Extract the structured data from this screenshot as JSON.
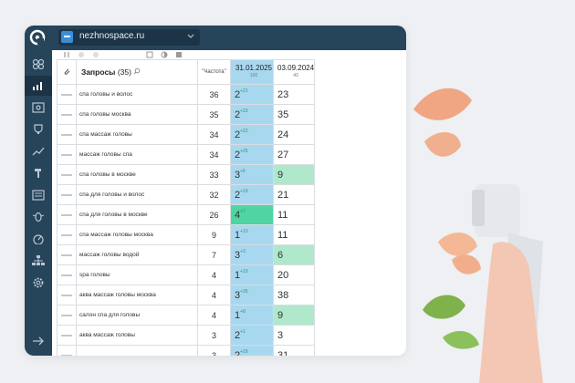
{
  "app": {
    "site": "nezhnospace.ru"
  },
  "table": {
    "header": {
      "queries_label": "Запросы",
      "queries_count": "(35)",
      "frequency_label": "\"Частота\""
    },
    "dates": [
      {
        "date": "31.01.2025",
        "sub": "100"
      },
      {
        "date": "03.09.2024",
        "sub": "43"
      }
    ],
    "rows": [
      {
        "query": "спа головы и волос",
        "freq": "36",
        "pos1": "2",
        "delta": "+21",
        "pos2": "23"
      },
      {
        "query": "спа головы москва",
        "freq": "35",
        "pos1": "2",
        "delta": "+33",
        "pos2": "35"
      },
      {
        "query": "спа массаж головы",
        "freq": "34",
        "pos1": "2",
        "delta": "+22",
        "pos2": "24"
      },
      {
        "query": "массаж головы спа",
        "freq": "34",
        "pos1": "2",
        "delta": "+25",
        "pos2": "27"
      },
      {
        "query": "спа головы в москве",
        "freq": "33",
        "pos1": "3",
        "delta": "+6",
        "pos2": "9"
      },
      {
        "query": "спа для головы и волос",
        "freq": "32",
        "pos1": "2",
        "delta": "+19",
        "pos2": "21"
      },
      {
        "query": "спа для головы в москве",
        "freq": "26",
        "pos1": "4",
        "delta": "+7",
        "pos2": "11"
      },
      {
        "query": "спа массаж головы москва",
        "freq": "9",
        "pos1": "1",
        "delta": "+10",
        "pos2": "11"
      },
      {
        "query": "массаж головы водой",
        "freq": "7",
        "pos1": "3",
        "delta": "+3",
        "pos2": "6"
      },
      {
        "query": "spa головы",
        "freq": "4",
        "pos1": "1",
        "delta": "+19",
        "pos2": "20"
      },
      {
        "query": "аква массаж головы москва",
        "freq": "4",
        "pos1": "3",
        "delta": "+35",
        "pos2": "38"
      },
      {
        "query": "салон спа для головы",
        "freq": "4",
        "pos1": "1",
        "delta": "+8",
        "pos2": "9"
      },
      {
        "query": "аква массаж головы",
        "freq": "3",
        "pos1": "2",
        "delta": "+1",
        "pos2": "3"
      },
      {
        "query": "",
        "freq": "3",
        "pos1": "2",
        "delta": "+29",
        "pos2": "31"
      }
    ]
  }
}
